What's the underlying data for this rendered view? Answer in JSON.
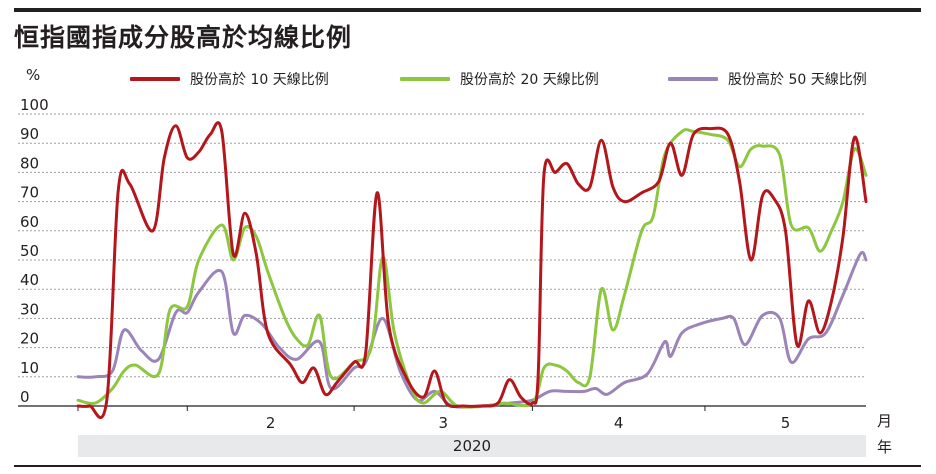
{
  "title": "恒指國指成分股高於均線比例",
  "chart_data": {
    "type": "line",
    "y_unit": "%",
    "ylim": [
      0,
      100
    ],
    "y_ticks": [
      0,
      10,
      20,
      30,
      40,
      50,
      60,
      70,
      80,
      90,
      100
    ],
    "x_domain": [
      "2020-01-13",
      "2020-05-29"
    ],
    "month_labels": [
      "2",
      "3",
      "4",
      "5"
    ],
    "month_unit": "月",
    "year_label": "2020",
    "year_unit": "年",
    "grid": true,
    "legend_position": "top",
    "series": [
      {
        "name": "股份高於 10 天線比例",
        "color": "#b3171c",
        "points": [
          [
            "2020-01-13",
            0
          ],
          [
            "2020-01-15",
            0
          ],
          [
            "2020-01-18",
            2
          ],
          [
            "2020-01-20",
            74
          ],
          [
            "2020-01-22",
            76
          ],
          [
            "2020-01-26",
            60
          ],
          [
            "2020-01-28",
            85
          ],
          [
            "2020-01-30",
            96
          ],
          [
            "2020-02-01",
            85
          ],
          [
            "2020-02-03",
            87
          ],
          [
            "2020-02-05",
            93
          ],
          [
            "2020-02-07",
            94
          ],
          [
            "2020-02-09",
            52
          ],
          [
            "2020-02-11",
            66
          ],
          [
            "2020-02-13",
            52
          ],
          [
            "2020-02-15",
            25
          ],
          [
            "2020-02-19",
            14
          ],
          [
            "2020-02-21",
            8
          ],
          [
            "2020-02-23",
            13
          ],
          [
            "2020-02-25",
            4
          ],
          [
            "2020-02-27",
            8
          ],
          [
            "2020-03-01",
            15
          ],
          [
            "2020-03-03",
            18
          ],
          [
            "2020-03-05",
            73
          ],
          [
            "2020-03-07",
            28
          ],
          [
            "2020-03-10",
            10
          ],
          [
            "2020-03-13",
            3
          ],
          [
            "2020-03-15",
            12
          ],
          [
            "2020-03-17",
            1
          ],
          [
            "2020-03-20",
            0
          ],
          [
            "2020-03-23",
            0
          ],
          [
            "2020-03-26",
            1
          ],
          [
            "2020-03-28",
            9
          ],
          [
            "2020-03-30",
            3
          ],
          [
            "2020-04-01",
            1
          ],
          [
            "2020-04-02",
            10
          ],
          [
            "2020-04-03",
            79
          ],
          [
            "2020-04-05",
            80
          ],
          [
            "2020-04-07",
            83
          ],
          [
            "2020-04-09",
            76
          ],
          [
            "2020-04-11",
            75
          ],
          [
            "2020-04-13",
            91
          ],
          [
            "2020-04-15",
            75
          ],
          [
            "2020-04-17",
            70
          ],
          [
            "2020-04-20",
            73
          ],
          [
            "2020-04-23",
            77
          ],
          [
            "2020-04-25",
            90
          ],
          [
            "2020-04-27",
            79
          ],
          [
            "2020-04-29",
            93
          ],
          [
            "2020-05-02",
            95
          ],
          [
            "2020-05-05",
            93
          ],
          [
            "2020-05-07",
            77
          ],
          [
            "2020-05-09",
            50
          ],
          [
            "2020-05-11",
            72
          ],
          [
            "2020-05-13",
            71
          ],
          [
            "2020-05-15",
            60
          ],
          [
            "2020-05-17",
            21
          ],
          [
            "2020-05-19",
            36
          ],
          [
            "2020-05-21",
            25
          ],
          [
            "2020-05-23",
            36
          ],
          [
            "2020-05-25",
            58
          ],
          [
            "2020-05-27",
            92
          ],
          [
            "2020-05-29",
            70
          ]
        ]
      },
      {
        "name": "股份高於 20 天線比例",
        "color": "#8dc63f",
        "points": [
          [
            "2020-01-13",
            2
          ],
          [
            "2020-01-16",
            1
          ],
          [
            "2020-01-19",
            6
          ],
          [
            "2020-01-21",
            12
          ],
          [
            "2020-01-23",
            14
          ],
          [
            "2020-01-27",
            11
          ],
          [
            "2020-01-29",
            33
          ],
          [
            "2020-02-01",
            34
          ],
          [
            "2020-02-03",
            50
          ],
          [
            "2020-02-07",
            62
          ],
          [
            "2020-02-09",
            50
          ],
          [
            "2020-02-11",
            61
          ],
          [
            "2020-02-13",
            58
          ],
          [
            "2020-02-15",
            46
          ],
          [
            "2020-02-18",
            30
          ],
          [
            "2020-02-20",
            23
          ],
          [
            "2020-02-22",
            21
          ],
          [
            "2020-02-24",
            31
          ],
          [
            "2020-02-26",
            10
          ],
          [
            "2020-03-01",
            15
          ],
          [
            "2020-03-04",
            20
          ],
          [
            "2020-03-06",
            51
          ],
          [
            "2020-03-08",
            25
          ],
          [
            "2020-03-11",
            6
          ],
          [
            "2020-03-13",
            1
          ],
          [
            "2020-03-16",
            5
          ],
          [
            "2020-03-19",
            0
          ],
          [
            "2020-03-24",
            0
          ],
          [
            "2020-03-27",
            1
          ],
          [
            "2020-04-01",
            1
          ],
          [
            "2020-04-03",
            13
          ],
          [
            "2020-04-05",
            14
          ],
          [
            "2020-04-07",
            12
          ],
          [
            "2020-04-09",
            8
          ],
          [
            "2020-04-11",
            10
          ],
          [
            "2020-04-13",
            40
          ],
          [
            "2020-04-15",
            26
          ],
          [
            "2020-04-17",
            38
          ],
          [
            "2020-04-20",
            60
          ],
          [
            "2020-04-22",
            65
          ],
          [
            "2020-04-24",
            86
          ],
          [
            "2020-04-27",
            94
          ],
          [
            "2020-04-29",
            94
          ],
          [
            "2020-05-02",
            93
          ],
          [
            "2020-05-05",
            91
          ],
          [
            "2020-05-07",
            82
          ],
          [
            "2020-05-09",
            88
          ],
          [
            "2020-05-11",
            89
          ],
          [
            "2020-05-14",
            86
          ],
          [
            "2020-05-16",
            62
          ],
          [
            "2020-05-19",
            61
          ],
          [
            "2020-05-21",
            53
          ],
          [
            "2020-05-23",
            60
          ],
          [
            "2020-05-25",
            70
          ],
          [
            "2020-05-27",
            88
          ],
          [
            "2020-05-29",
            79
          ]
        ]
      },
      {
        "name": "股份高於 50 天線比例",
        "color": "#9b84b7",
        "points": [
          [
            "2020-01-13",
            10
          ],
          [
            "2020-01-16",
            10
          ],
          [
            "2020-01-19",
            12
          ],
          [
            "2020-01-21",
            26
          ],
          [
            "2020-01-24",
            19
          ],
          [
            "2020-01-27",
            16
          ],
          [
            "2020-01-30",
            32
          ],
          [
            "2020-02-01",
            32
          ],
          [
            "2020-02-03",
            39
          ],
          [
            "2020-02-07",
            46
          ],
          [
            "2020-02-09",
            25
          ],
          [
            "2020-02-11",
            31
          ],
          [
            "2020-02-14",
            28
          ],
          [
            "2020-02-17",
            20
          ],
          [
            "2020-02-20",
            16
          ],
          [
            "2020-02-24",
            22
          ],
          [
            "2020-02-26",
            6
          ],
          [
            "2020-03-01",
            13
          ],
          [
            "2020-03-03",
            15
          ],
          [
            "2020-03-06",
            30
          ],
          [
            "2020-03-09",
            12
          ],
          [
            "2020-03-12",
            2
          ],
          [
            "2020-03-15",
            5
          ],
          [
            "2020-03-18",
            0
          ],
          [
            "2020-03-23",
            0
          ],
          [
            "2020-03-28",
            1
          ],
          [
            "2020-04-01",
            2
          ],
          [
            "2020-04-04",
            5
          ],
          [
            "2020-04-07",
            5
          ],
          [
            "2020-04-10",
            5
          ],
          [
            "2020-04-12",
            6
          ],
          [
            "2020-04-14",
            4
          ],
          [
            "2020-04-17",
            8
          ],
          [
            "2020-04-21",
            11
          ],
          [
            "2020-04-24",
            22
          ],
          [
            "2020-04-25",
            17
          ],
          [
            "2020-04-27",
            25
          ],
          [
            "2020-04-30",
            28
          ],
          [
            "2020-05-04",
            30
          ],
          [
            "2020-05-06",
            30
          ],
          [
            "2020-05-08",
            21
          ],
          [
            "2020-05-11",
            31
          ],
          [
            "2020-05-14",
            30
          ],
          [
            "2020-05-16",
            15
          ],
          [
            "2020-05-19",
            23
          ],
          [
            "2020-05-22",
            25
          ],
          [
            "2020-05-25",
            38
          ],
          [
            "2020-05-28",
            52
          ],
          [
            "2020-05-29",
            50
          ]
        ]
      }
    ]
  }
}
